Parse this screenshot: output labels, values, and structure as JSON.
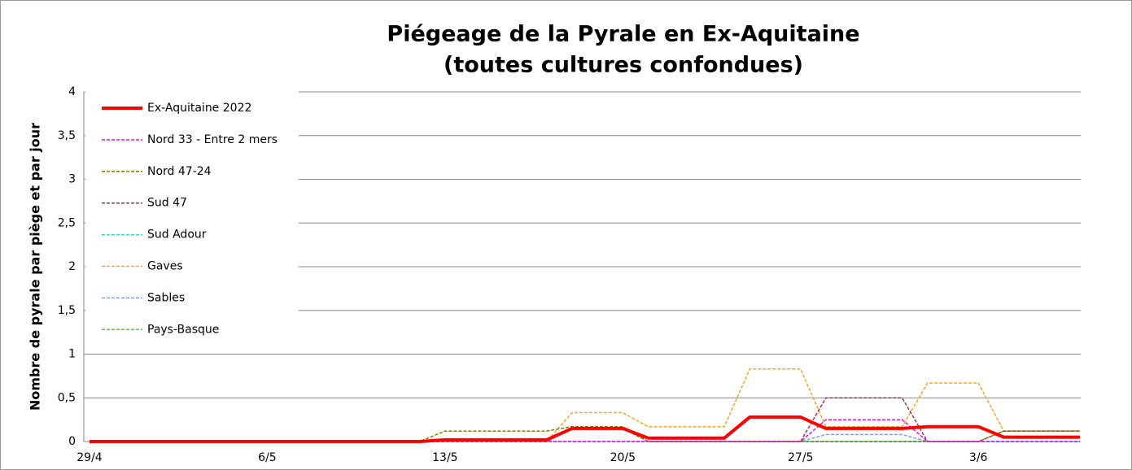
{
  "chart_data": {
    "type": "line",
    "title": [
      "Piégeage de la Pyrale en Ex-Aquitaine",
      "(toutes cultures confondues)"
    ],
    "y_label": "Nombre de pyrale par piège et par jour",
    "categories": [
      "29/4",
      null,
      null,
      null,
      null,
      null,
      null,
      "6/5",
      null,
      null,
      null,
      null,
      null,
      null,
      "13/5",
      null,
      null,
      null,
      null,
      null,
      null,
      "20/5",
      null,
      null,
      null,
      null,
      null,
      null,
      "27/5",
      null,
      null,
      null,
      null,
      null,
      null,
      "3/6",
      null,
      null,
      null,
      null
    ],
    "ylim": [
      0,
      4
    ],
    "yticks": [
      0,
      {
        "value": 0.5,
        "label": "0,5"
      },
      1,
      {
        "value": 1.5,
        "label": "1,5"
      },
      2,
      {
        "value": 2.5,
        "label": "2,5"
      },
      3,
      {
        "value": 3.5,
        "label": "3,5"
      },
      4
    ],
    "grid": true,
    "legend": "top-left",
    "series": [
      {
        "name": "Ex-Aquitaine 2022",
        "color": "#ff0000",
        "width": 4,
        "dashed": false,
        "values": [
          0,
          0,
          0,
          0,
          0,
          0,
          0,
          0,
          0,
          0,
          0,
          0,
          0,
          0,
          0.02,
          0.02,
          0.02,
          0.02,
          0.02,
          0.15,
          0.15,
          0.15,
          0.04,
          0.04,
          0.04,
          0.04,
          0.28,
          0.28,
          0.28,
          0.15,
          0.15,
          0.15,
          0.15,
          0.17,
          0.17,
          0.17,
          0.05,
          0.05,
          0.05,
          0.05
        ]
      },
      {
        "name": "Nord 33 - Entre 2 mers",
        "color": "#ff00ff",
        "width": 1.5,
        "dashed": true,
        "values": [
          0,
          0,
          0,
          0,
          0,
          0,
          0,
          0,
          0,
          0,
          0,
          0,
          0,
          0,
          0,
          0,
          0,
          0,
          0,
          0,
          0,
          0,
          0,
          0,
          0,
          0,
          0,
          0,
          0,
          0.25,
          0.25,
          0.25,
          0.25,
          0,
          0,
          0,
          0,
          0,
          0,
          0
        ]
      },
      {
        "name": "Nord 47-24",
        "color": "#7f7f00",
        "width": 1.5,
        "dashed": true,
        "values": [
          0,
          0,
          0,
          0,
          0,
          0,
          0,
          0,
          0,
          0,
          0,
          0,
          0,
          0,
          0.12,
          0.12,
          0.12,
          0.12,
          0.12,
          0.17,
          0.17,
          0.17,
          0,
          0,
          0,
          0,
          0,
          0,
          0,
          0,
          0,
          0,
          0,
          0,
          0,
          0,
          0.12,
          0.12,
          0.12,
          0.12
        ]
      },
      {
        "name": "Sud 47",
        "color": "#993366",
        "width": 1.5,
        "dashed": true,
        "values": [
          0,
          0,
          0,
          0,
          0,
          0,
          0,
          0,
          0,
          0,
          0,
          0,
          0,
          0,
          0,
          0,
          0,
          0,
          0,
          0.15,
          0.15,
          0.15,
          0,
          0,
          0,
          0,
          0,
          0,
          0,
          0.5,
          0.5,
          0.5,
          0.5,
          0,
          0,
          0,
          0.12,
          0.12,
          0.12,
          0.12
        ]
      },
      {
        "name": "Sud Adour",
        "color": "#33cccc",
        "width": 1.5,
        "dashed": true,
        "values": [
          0,
          0,
          0,
          0,
          0,
          0,
          0,
          0,
          0,
          0,
          0,
          0,
          0,
          0,
          0,
          0,
          0,
          0,
          0,
          0,
          0,
          0,
          0,
          0,
          0,
          0,
          0,
          0,
          0,
          0,
          0,
          0,
          0,
          0,
          0,
          0,
          0,
          0,
          0,
          0
        ]
      },
      {
        "name": "Gaves",
        "color": "#f5a623",
        "width": 1.5,
        "dashed": true,
        "values": [
          0,
          0,
          0,
          0,
          0,
          0,
          0,
          0,
          0,
          0,
          0,
          0,
          0,
          0,
          0,
          0,
          0,
          0,
          0,
          0.33,
          0.33,
          0.33,
          0.17,
          0.17,
          0.17,
          0.17,
          0.83,
          0.83,
          0.83,
          0.17,
          0.17,
          0.17,
          0.17,
          0.67,
          0.67,
          0.67,
          0.12,
          0.12,
          0.12,
          0.12
        ]
      },
      {
        "name": "Sables",
        "color": "#8899ee",
        "width": 1.5,
        "dashed": true,
        "values": [
          0,
          0,
          0,
          0,
          0,
          0,
          0,
          0,
          0,
          0,
          0,
          0,
          0,
          0,
          0,
          0,
          0,
          0,
          0,
          0,
          0,
          0,
          0,
          0,
          0,
          0,
          0,
          0,
          0,
          0.08,
          0.08,
          0.08,
          0.08,
          0,
          0,
          0,
          0,
          0,
          0,
          0
        ]
      },
      {
        "name": "Pays-Basque",
        "color": "#66bb33",
        "width": 1.5,
        "dashed": true,
        "values": [
          0,
          0,
          0,
          0,
          0,
          0,
          0,
          0,
          0,
          0,
          0,
          0,
          0,
          0,
          0,
          0,
          0,
          0,
          0,
          0.15,
          0.15,
          0.15,
          0,
          0,
          0,
          0,
          0,
          0,
          0,
          0,
          0,
          0,
          0,
          0,
          0,
          0,
          0,
          0,
          0,
          0
        ]
      }
    ]
  }
}
